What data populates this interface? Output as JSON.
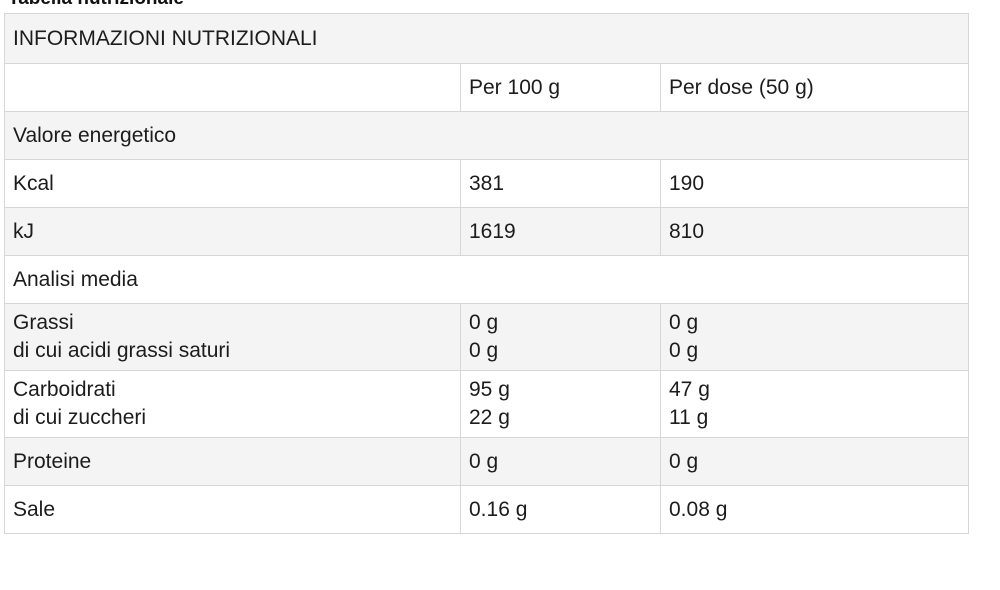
{
  "caption": "Tabella nutrizionale",
  "title": "INFORMAZIONI NUTRIZIONALI",
  "columns": {
    "blank": "",
    "per100": "Per 100 g",
    "perDose": "Per dose (50 g)"
  },
  "sections": {
    "energy": "Valore energetico",
    "analysis": "Analisi media"
  },
  "rows": {
    "kcal": {
      "label": "Kcal",
      "per100": "381",
      "perDose": "190"
    },
    "kj": {
      "label": "kJ",
      "per100": "1619",
      "perDose": "810"
    },
    "fat": {
      "label": "Grassi",
      "sublabel": "di cui acidi grassi saturi",
      "per100": "0 g",
      "per100sub": "0 g",
      "perDose": "0 g",
      "perDosesub": "0 g"
    },
    "carbs": {
      "label": "Carboidrati",
      "sublabel": "di cui zuccheri",
      "per100": "95 g",
      "per100sub": "22 g",
      "perDose": "47 g",
      "perDosesub": "11 g"
    },
    "protein": {
      "label": "Proteine",
      "per100": "0 g",
      "perDose": "0 g"
    },
    "salt": {
      "label": "Sale",
      "per100": "0.16 g",
      "perDose": "0.08 g"
    }
  }
}
